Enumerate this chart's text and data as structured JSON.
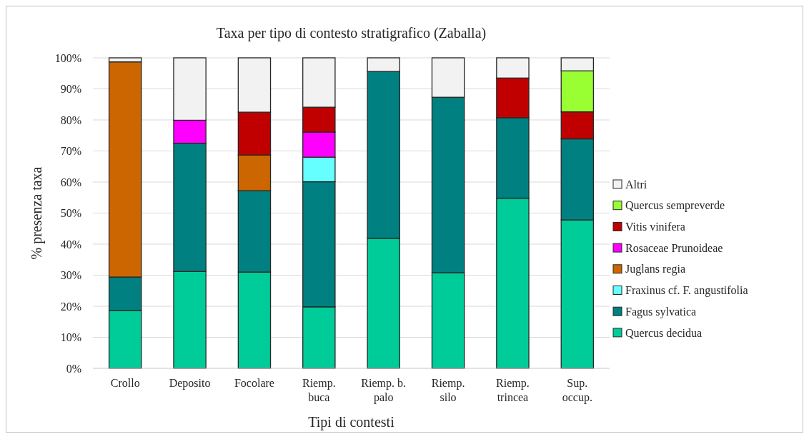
{
  "chart_data": {
    "type": "bar",
    "stacked": true,
    "title": "Taxa per tipo di contesto stratigrafico (Zaballa)",
    "xlabel": "Tipi di contesti",
    "ylabel": "% presenza taxa",
    "categories": [
      "Crollo",
      "Deposito",
      "Focolare",
      "Riemp. buca",
      "Riemp. b. palo",
      "Riemp. silo",
      "Riemp. trincea",
      "Sup. occup."
    ],
    "series": [
      {
        "name": "Quercus decidua",
        "color": "#00cc99",
        "values": [
          18.6,
          31.2,
          31.0,
          19.8,
          41.9,
          30.8,
          54.8,
          47.8
        ]
      },
      {
        "name": "Fagus sylvatica",
        "color": "#008080",
        "values": [
          10.8,
          41.3,
          26.2,
          40.3,
          53.7,
          56.5,
          25.9,
          26.1
        ]
      },
      {
        "name": "Fraxinus cf. F. angustifolia",
        "color": "#66ffff",
        "values": [
          null,
          null,
          null,
          7.9,
          null,
          null,
          null,
          null
        ]
      },
      {
        "name": "Juglans regia",
        "color": "#cc6600",
        "values": [
          69.3,
          null,
          11.5,
          null,
          null,
          null,
          null,
          null
        ]
      },
      {
        "name": "Rosaceae Prunoideae",
        "color": "#ff00ff",
        "values": [
          null,
          7.4,
          null,
          8.1,
          null,
          null,
          null,
          null
        ]
      },
      {
        "name": "Vitis vinifera",
        "color": "#c00000",
        "values": [
          null,
          null,
          13.8,
          8.0,
          null,
          null,
          12.8,
          8.7
        ]
      },
      {
        "name": "Quercus sempreverde",
        "color": "#99ff33",
        "values": [
          null,
          null,
          null,
          null,
          null,
          null,
          null,
          13.2
        ]
      },
      {
        "name": "Altri",
        "color": "#f2f2f2",
        "values": [
          1.3,
          20.1,
          17.5,
          15.9,
          4.4,
          12.7,
          6.5,
          4.2
        ]
      }
    ],
    "ylim": [
      0,
      100
    ],
    "yticks": [
      {
        "value": 0,
        "label": "0%"
      },
      {
        "value": 10,
        "label": "10%"
      },
      {
        "value": 20,
        "label": "20%"
      },
      {
        "value": 30,
        "label": "30%"
      },
      {
        "value": 40,
        "label": "40%"
      },
      {
        "value": 50,
        "label": "50%"
      },
      {
        "value": 60,
        "label": "60%"
      },
      {
        "value": 70,
        "label": "70%"
      },
      {
        "value": 80,
        "label": "80%"
      },
      {
        "value": 90,
        "label": "90%"
      },
      {
        "value": 100,
        "label": "100%"
      }
    ],
    "grid": "y",
    "legend": "right"
  }
}
